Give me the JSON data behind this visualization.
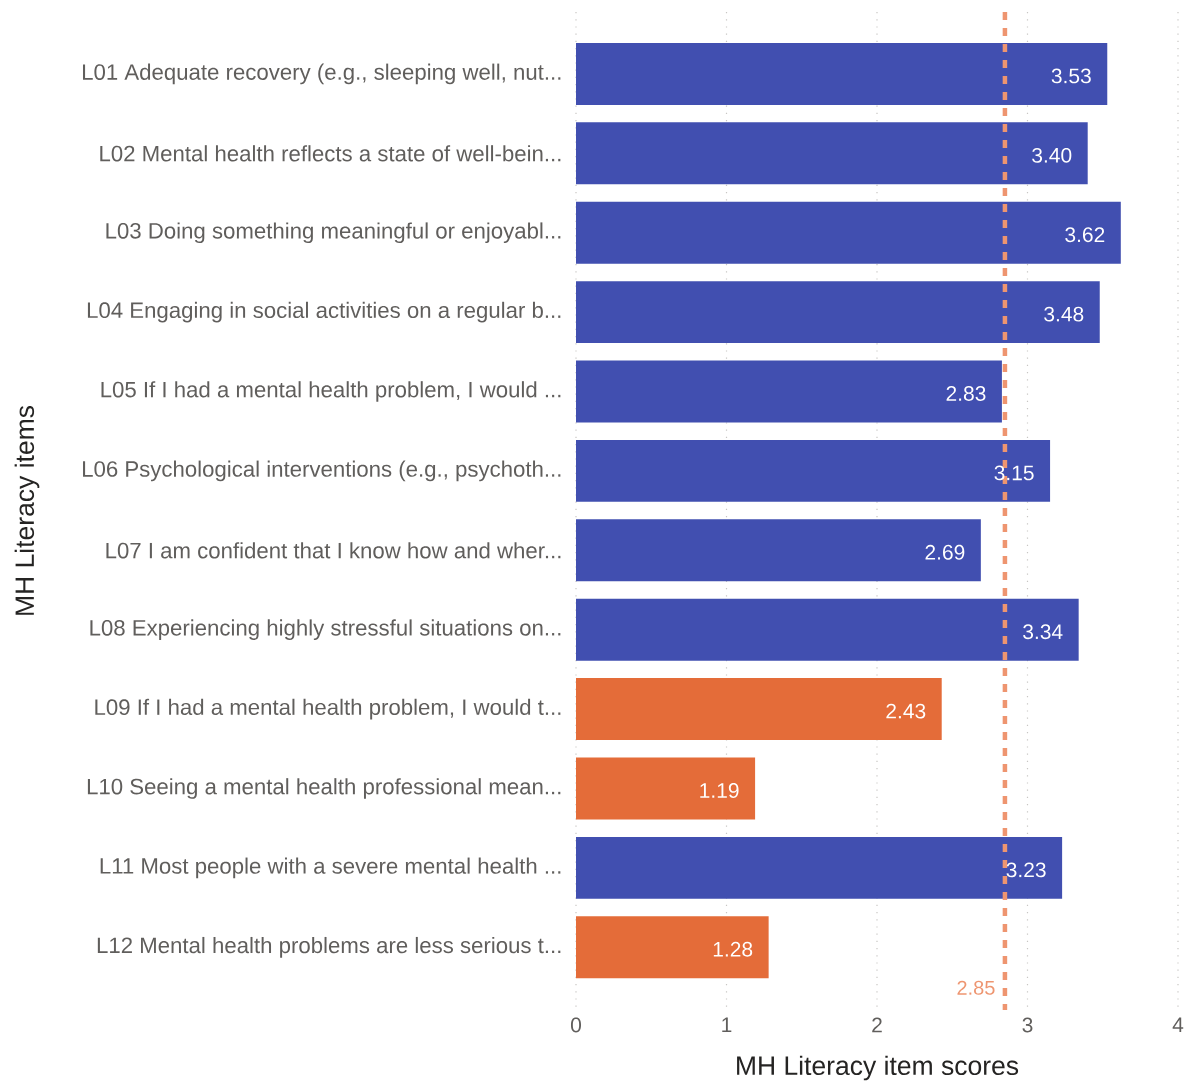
{
  "chart_data": {
    "type": "bar",
    "orientation": "horizontal",
    "xlabel": "MH Literacy item scores",
    "ylabel": "MH Literacy items",
    "categories": [
      "L01 Adequate recovery (e.g., sleeping well, nut...",
      "L02 Mental health reflects a state of well-bein...",
      "L03 Doing something meaningful or enjoyabl...",
      "L04 Engaging in social activities on a regular b...",
      "L05 If I had a mental health problem, I would ...",
      "L06 Psychological interventions (e.g., psychoth...",
      "L07 I am confident that I know how and wher...",
      "L08 Experiencing highly stressful situations on...",
      "L09 If I had a mental health problem, I would t...",
      "L10 Seeing a mental health professional mean...",
      "L11 Most people with a severe mental health ...",
      "L12 Mental health problems are less serious t..."
    ],
    "values": [
      3.53,
      3.4,
      3.62,
      3.48,
      2.83,
      3.15,
      2.69,
      3.34,
      2.43,
      1.19,
      3.23,
      1.28
    ],
    "value_labels": [
      "3.53",
      "3.40",
      "3.62",
      "3.48",
      "2.83",
      "3.15",
      "2.69",
      "3.34",
      "2.43",
      "1.19",
      "3.23",
      "1.28"
    ],
    "colors": [
      "#414fb0",
      "#414fb0",
      "#414fb0",
      "#414fb0",
      "#414fb0",
      "#414fb0",
      "#414fb0",
      "#414fb0",
      "#e46c39",
      "#e46c39",
      "#414fb0",
      "#e46c39"
    ],
    "xlim": [
      0,
      4
    ],
    "xticks": [
      0,
      1,
      2,
      3,
      4
    ],
    "grid": "x",
    "ref_lines": [
      {
        "axis": "x",
        "value": 2.85,
        "label": "2.85",
        "color": "#ee9570",
        "line_style": "dashed"
      }
    ]
  }
}
